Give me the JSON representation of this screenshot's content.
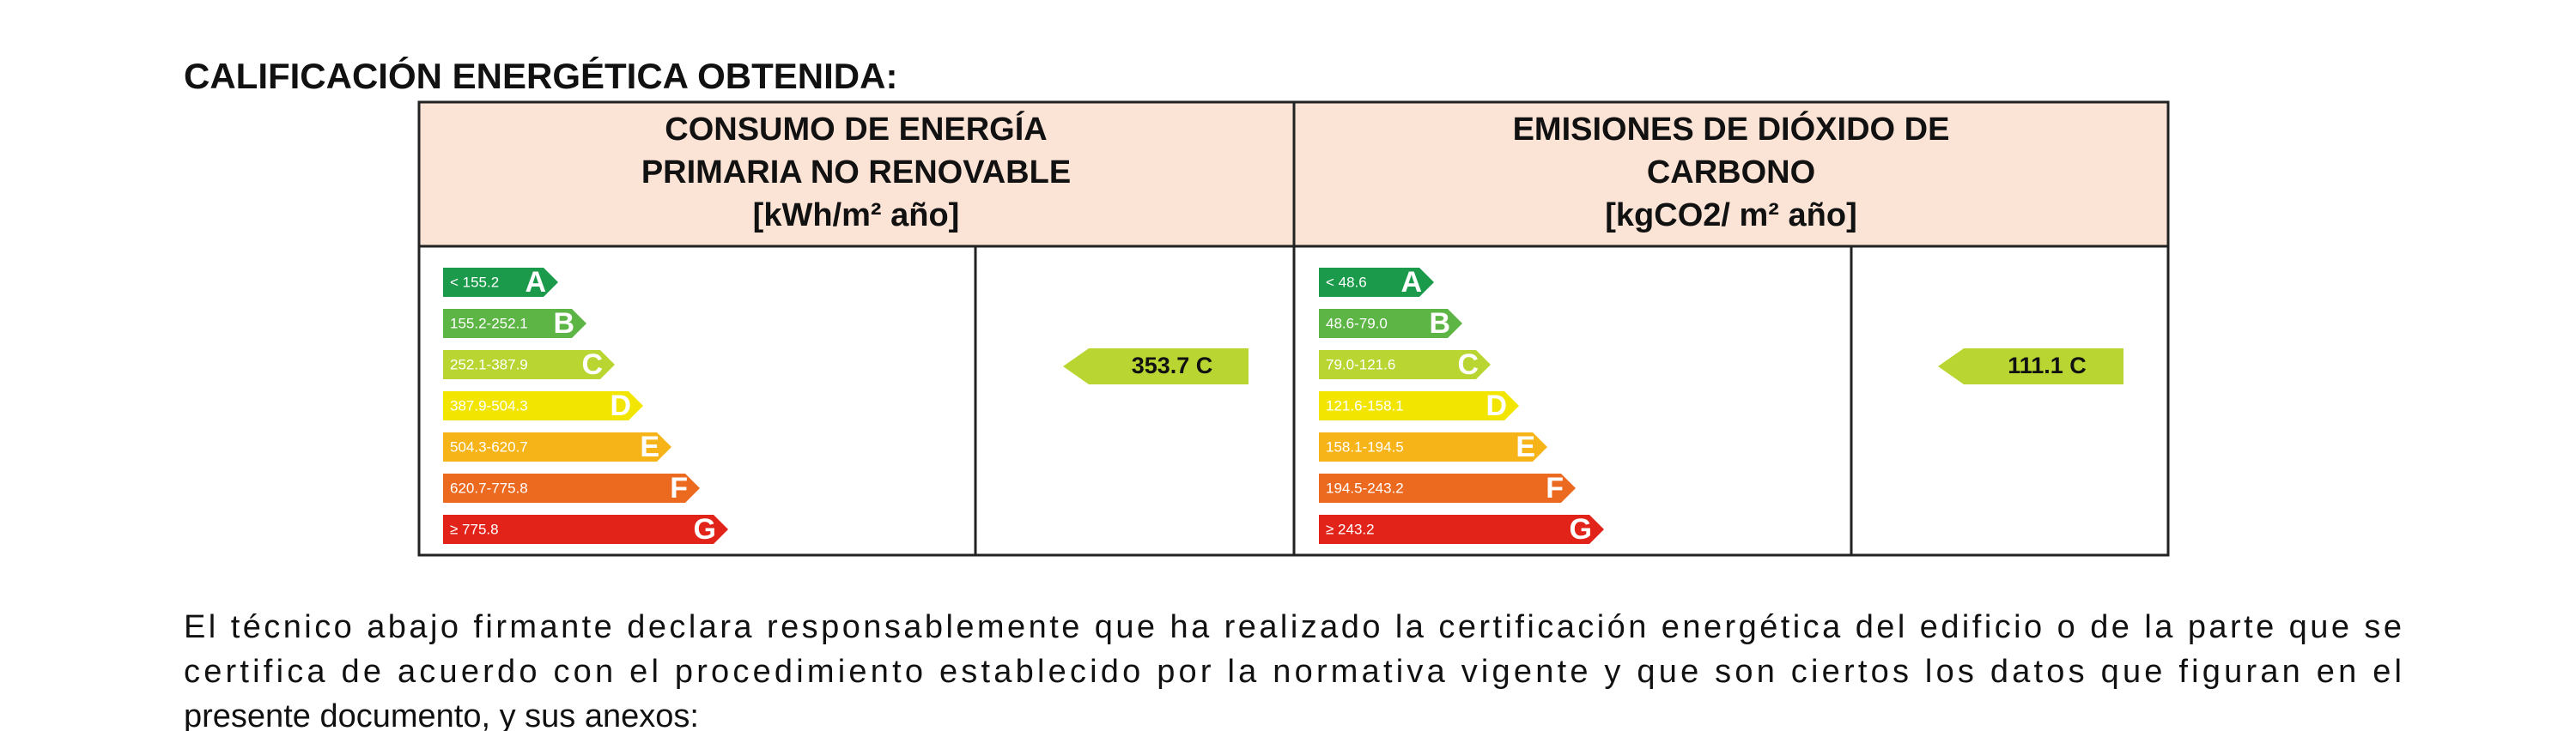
{
  "title": "CALIFICACIÓN ENERGÉTICA OBTENIDA:",
  "panels": [
    {
      "header": [
        "CONSUMO DE ENERGÍA",
        "PRIMARIA NO RENOVABLE",
        "[kWh/m² año]"
      ],
      "scale": [
        {
          "range": "< 155.2",
          "letter": "A"
        },
        {
          "range": "155.2-252.1",
          "letter": "B"
        },
        {
          "range": "252.1-387.9",
          "letter": "C"
        },
        {
          "range": "387.9-504.3",
          "letter": "D"
        },
        {
          "range": "504.3-620.7",
          "letter": "E"
        },
        {
          "range": "620.7-775.8",
          "letter": "F"
        },
        {
          "range": "≥ 775.8",
          "letter": "G"
        }
      ],
      "result": "353.7 C"
    },
    {
      "header": [
        "EMISIONES DE DIÓXIDO DE",
        "CARBONO",
        "[kgCO2/ m² año]"
      ],
      "scale": [
        {
          "range": "< 48.6",
          "letter": "A"
        },
        {
          "range": "48.6-79.0",
          "letter": "B"
        },
        {
          "range": "79.0-121.6",
          "letter": "C"
        },
        {
          "range": "121.6-158.1",
          "letter": "D"
        },
        {
          "range": "158.1-194.5",
          "letter": "E"
        },
        {
          "range": "194.5-243.2",
          "letter": "F"
        },
        {
          "range": "≥ 243.2",
          "letter": "G"
        }
      ],
      "result": "111.1 C"
    }
  ],
  "paragraph": [
    "El técnico abajo firmante declara responsablemente que ha realizado la certificación energética del edificio o de la parte que se",
    "certifica de acuerdo con el procedimiento establecido por la normativa vigente y que son ciertos los datos que figuran en el",
    "presente documento, y sus anexos:"
  ]
}
